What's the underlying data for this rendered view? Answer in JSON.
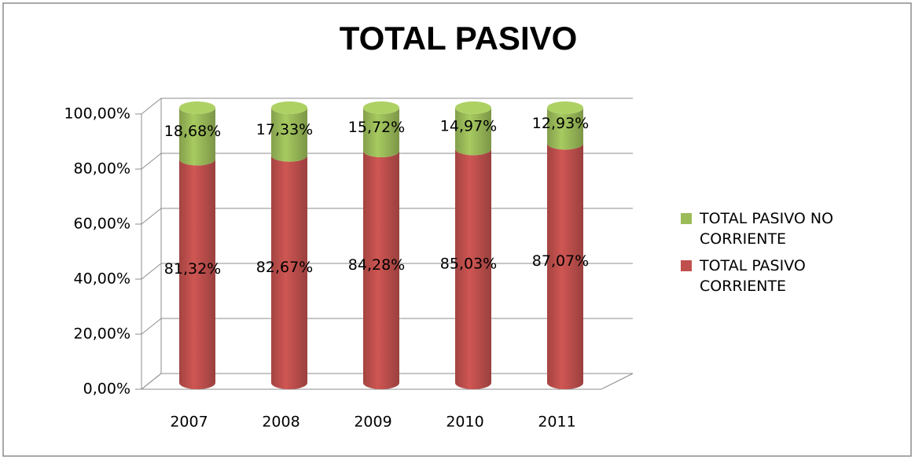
{
  "chart_data": {
    "type": "bar3d_stacked",
    "title": "TOTAL PASIVO",
    "categories": [
      "2007",
      "2008",
      "2009",
      "2010",
      "2011"
    ],
    "series": [
      {
        "name": "TOTAL PASIVO CORRIENTE",
        "color": "#c0504d",
        "values": [
          81.32,
          82.67,
          84.28,
          85.03,
          87.07
        ],
        "value_labels": [
          "81,32%",
          "82,67%",
          "84,28%",
          "85,03%",
          "87,07%"
        ]
      },
      {
        "name": "TOTAL PASIVO NO CORRIENTE",
        "color": "#9bbb59",
        "values": [
          18.68,
          17.33,
          15.72,
          14.97,
          12.93
        ],
        "value_labels": [
          "18,68%",
          "17,33%",
          "15,72%",
          "14,97%",
          "12,93%"
        ]
      }
    ],
    "ylim": [
      0,
      100
    ],
    "yticks": [
      {
        "value": 0,
        "label": "0,00%"
      },
      {
        "value": 20,
        "label": "20,00%"
      },
      {
        "value": 40,
        "label": "40,00%"
      },
      {
        "value": 60,
        "label": "60,00%"
      },
      {
        "value": 80,
        "label": "80,00%"
      },
      {
        "value": 100,
        "label": "100,00%"
      }
    ],
    "grid": true,
    "legend": "right"
  }
}
